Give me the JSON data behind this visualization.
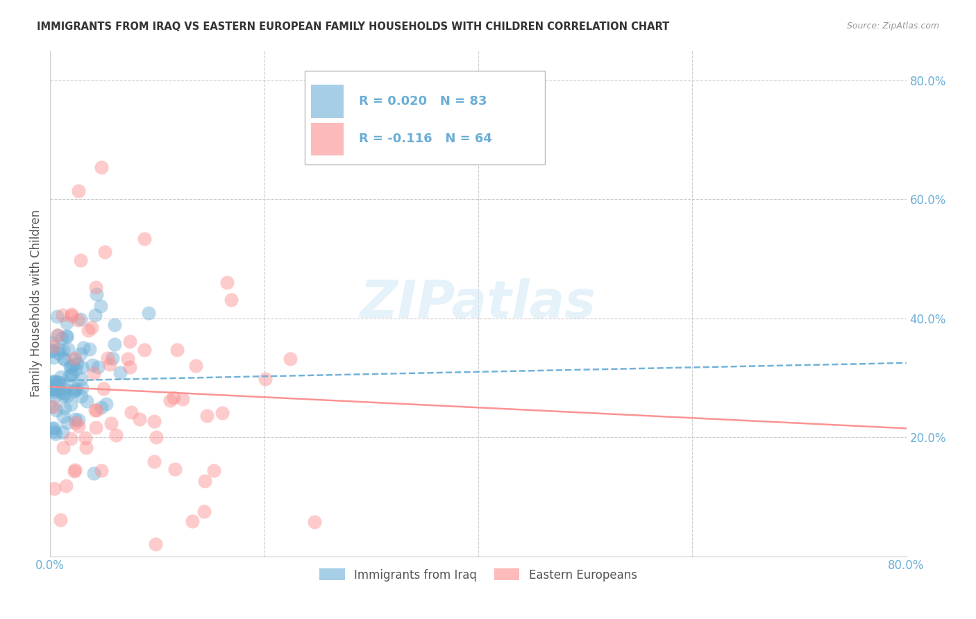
{
  "title": "IMMIGRANTS FROM IRAQ VS EASTERN EUROPEAN FAMILY HOUSEHOLDS WITH CHILDREN CORRELATION CHART",
  "source": "Source: ZipAtlas.com",
  "ylabel": "Family Households with Children",
  "xlim": [
    0.0,
    0.8
  ],
  "ylim": [
    0.0,
    0.85
  ],
  "yticks_right": [
    0.2,
    0.4,
    0.6,
    0.8
  ],
  "ytick_labels_right": [
    "20.0%",
    "40.0%",
    "60.0%",
    "80.0%"
  ],
  "xtick_labels_show": [
    "0.0%",
    "80.0%"
  ],
  "xtick_positions_show": [
    0.0,
    0.8
  ],
  "series1_name": "Immigrants from Iraq",
  "series1_color": "#6baed6",
  "series2_name": "Eastern Europeans",
  "series2_color": "#fc8d8d",
  "series1_R": 0.02,
  "series1_N": 83,
  "series2_R": -0.116,
  "series2_N": 64,
  "line1_x": [
    0.0,
    0.8
  ],
  "line1_y": [
    0.295,
    0.325
  ],
  "line2_x": [
    0.0,
    0.8
  ],
  "line2_y": [
    0.285,
    0.215
  ],
  "watermark_text": "ZIPatlas",
  "background_color": "#ffffff",
  "grid_color": "#cccccc",
  "title_color": "#333333",
  "tick_color": "#6baed6",
  "legend1_text": "R = 0.020   N = 83",
  "legend2_text": "R = -0.116   N = 64"
}
